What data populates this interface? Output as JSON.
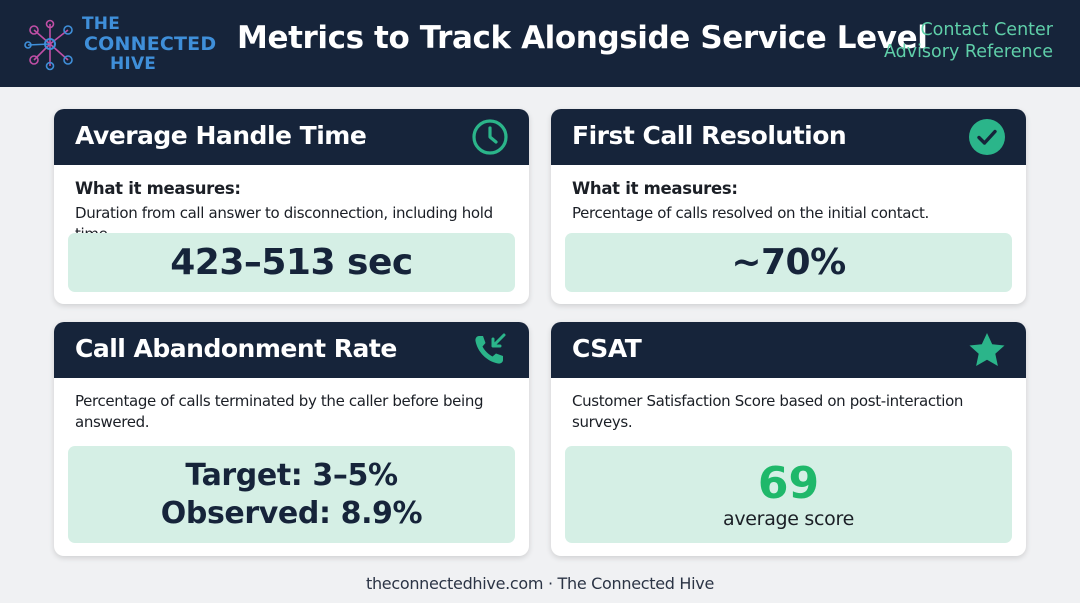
{
  "header": {
    "logo_line1": "THE",
    "logo_line2": "CONNECTED",
    "logo_line3": "HIVE",
    "title": "Metrics to Track Alongside Service Level",
    "subtitle_line1": "Contact Center",
    "subtitle_line2": "Advisory Reference"
  },
  "cards": {
    "aht": {
      "title": "Average Handle Time",
      "icon": "clock-icon",
      "measure_label": "What it measures:",
      "description": "Duration from call answer to disconnection, including hold time.",
      "value": "423–513 sec"
    },
    "fcr": {
      "title": "First Call Resolution",
      "icon": "check-circle-icon",
      "measure_label": "What it measures:",
      "description": "Percentage of calls resolved on the initial contact.",
      "value": "~70%"
    },
    "abandon": {
      "title": "Call Abandonment Rate",
      "icon": "missed-call-icon",
      "description": "Percentage of calls terminated by the caller before being answered.",
      "target": "Target: 3–5%",
      "observed": "Observed: 8.9%"
    },
    "csat": {
      "title": "CSAT",
      "icon": "star-icon",
      "description": "Customer Satisfaction Score based on post-interaction surveys.",
      "value": "69",
      "value_label": "average score"
    }
  },
  "footer": {
    "text": "theconnectedhive.com · The Connected Hive"
  },
  "colors": {
    "navy": "#16243a",
    "accent_green": "#2bb58a",
    "value_bg": "#d5efe5",
    "score_green": "#1fb86a",
    "logo_blue": "#3f8fd9"
  }
}
